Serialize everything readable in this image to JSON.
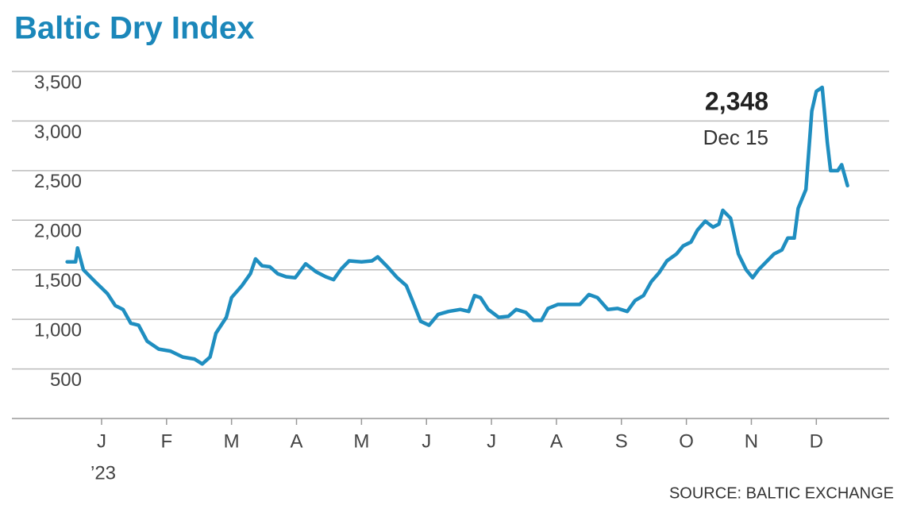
{
  "chart_data": {
    "type": "line",
    "title": "Baltic Dry Index",
    "source": "SOURCE: BALTIC EXCHANGE",
    "year_label": "’23",
    "annotation": {
      "label": "2,348",
      "date": "Dec 15"
    },
    "color": "#1f8ec0",
    "grid": true,
    "xlim": [
      -1.38,
      12.12
    ],
    "ylim": [
      0,
      3500
    ],
    "xticks": [
      {
        "value": 0,
        "label": "J"
      },
      {
        "value": 1,
        "label": "F"
      },
      {
        "value": 2,
        "label": "M"
      },
      {
        "value": 3,
        "label": "A"
      },
      {
        "value": 4,
        "label": "M"
      },
      {
        "value": 5,
        "label": "J"
      },
      {
        "value": 6,
        "label": "J"
      },
      {
        "value": 7,
        "label": "A"
      },
      {
        "value": 8,
        "label": "S"
      },
      {
        "value": 9,
        "label": "O"
      },
      {
        "value": 10,
        "label": "N"
      },
      {
        "value": 11,
        "label": "D"
      }
    ],
    "yticks": [
      {
        "value": 500,
        "label": "500"
      },
      {
        "value": 1000,
        "label": "1,000"
      },
      {
        "value": 1500,
        "label": "1,500"
      },
      {
        "value": 2000,
        "label": "2,000"
      },
      {
        "value": 2500,
        "label": "2,500"
      },
      {
        "value": 3000,
        "label": "3,000"
      },
      {
        "value": 3500,
        "label": "3,500"
      }
    ],
    "x": [
      -0.53,
      -0.4,
      -0.37,
      -0.28,
      -0.1,
      0.09,
      0.21,
      0.33,
      0.45,
      0.57,
      0.7,
      0.88,
      1.06,
      1.25,
      1.43,
      1.55,
      1.67,
      1.76,
      1.92,
      2.0,
      2.16,
      2.29,
      2.37,
      2.47,
      2.59,
      2.71,
      2.84,
      2.98,
      3.14,
      3.3,
      3.45,
      3.57,
      3.69,
      3.81,
      4.0,
      4.16,
      4.25,
      4.4,
      4.55,
      4.69,
      4.79,
      4.91,
      5.04,
      5.18,
      5.34,
      5.52,
      5.65,
      5.74,
      5.83,
      5.95,
      6.11,
      6.26,
      6.38,
      6.53,
      6.65,
      6.77,
      6.87,
      7.02,
      7.17,
      7.36,
      7.5,
      7.63,
      7.79,
      7.94,
      8.09,
      8.21,
      8.34,
      8.46,
      8.58,
      8.7,
      8.85,
      8.95,
      9.07,
      9.17,
      9.29,
      9.41,
      9.5,
      9.56,
      9.68,
      9.8,
      9.92,
      10.02,
      10.11,
      10.23,
      10.35,
      10.47,
      10.56,
      10.66,
      10.72,
      10.84,
      10.93,
      11.0,
      11.09,
      11.17,
      11.22,
      11.33,
      11.39,
      11.48
    ],
    "values": [
      1580,
      1580,
      1720,
      1500,
      1380,
      1260,
      1140,
      1100,
      960,
      940,
      780,
      700,
      680,
      620,
      600,
      550,
      620,
      860,
      1020,
      1220,
      1340,
      1460,
      1610,
      1540,
      1530,
      1460,
      1430,
      1420,
      1560,
      1480,
      1430,
      1400,
      1510,
      1590,
      1580,
      1590,
      1630,
      1530,
      1420,
      1340,
      1180,
      980,
      940,
      1050,
      1080,
      1100,
      1080,
      1240,
      1220,
      1100,
      1020,
      1030,
      1100,
      1070,
      990,
      990,
      1110,
      1150,
      1150,
      1150,
      1250,
      1220,
      1100,
      1110,
      1080,
      1190,
      1240,
      1380,
      1470,
      1590,
      1660,
      1740,
      1780,
      1900,
      1990,
      1930,
      1960,
      2100,
      2020,
      1660,
      1500,
      1420,
      1500,
      1580,
      1660,
      1700,
      1820,
      1820,
      2120,
      2310,
      3100,
      3300,
      3340,
      2780,
      2500,
      2500,
      2560,
      2348
    ]
  }
}
